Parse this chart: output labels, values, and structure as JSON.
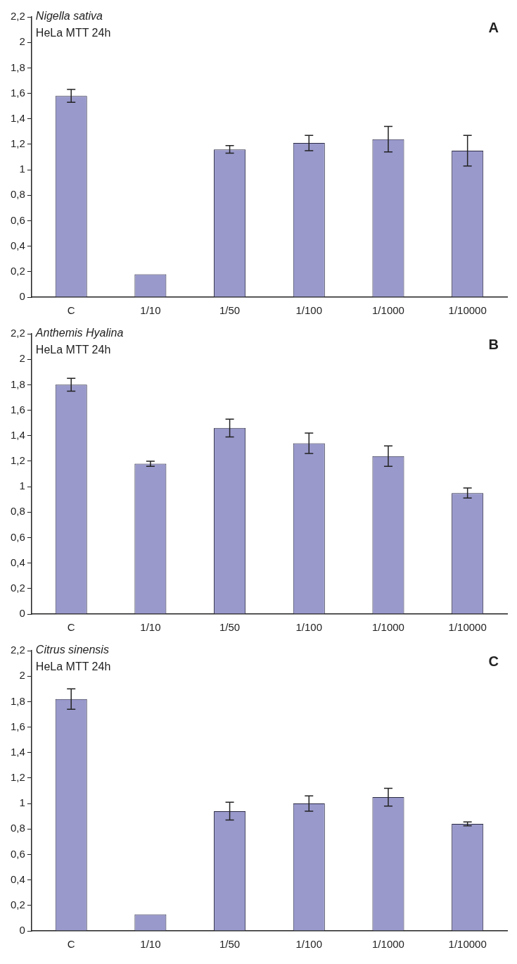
{
  "chart_data": [
    {
      "type": "bar",
      "title": "Nigella sativa",
      "subtitle": "HeLa MTT 24h",
      "annotations": [
        "A"
      ],
      "categories": [
        "C",
        "1/10",
        "1/50",
        "1/100",
        "1/1000",
        "1/10000"
      ],
      "values": [
        1.58,
        0.18,
        1.16,
        1.21,
        1.24,
        1.15
      ],
      "errors": [
        0.05,
        null,
        0.03,
        0.06,
        0.1,
        0.12
      ],
      "color": "#9999cc",
      "ylim": [
        0,
        2.2
      ],
      "yticks": [
        0,
        {
          "value": 0.2,
          "label": "0,2"
        },
        {
          "value": 0.4,
          "label": "0,4"
        },
        {
          "value": 0.6,
          "label": "0,6"
        },
        {
          "value": 0.8,
          "label": "0,8"
        },
        1,
        {
          "value": 1.2,
          "label": "1,2"
        },
        {
          "value": 1.4,
          "label": "1,4"
        },
        {
          "value": 1.6,
          "label": "1,6"
        },
        {
          "value": 1.8,
          "label": "1,8"
        },
        2,
        {
          "value": 2.2,
          "label": "2,2"
        }
      ]
    },
    {
      "type": "bar",
      "title": "Anthemis Hyalina",
      "subtitle": "HeLa MTT 24h",
      "annotations": [
        "B"
      ],
      "categories": [
        "C",
        "1/10",
        "1/50",
        "1/100",
        "1/1000",
        "1/10000"
      ],
      "values": [
        1.8,
        1.18,
        1.46,
        1.34,
        1.24,
        0.95
      ],
      "errors": [
        0.05,
        0.02,
        0.07,
        0.08,
        0.08,
        0.04
      ],
      "color": "#9999cc",
      "ylim": [
        0,
        2.2
      ],
      "yticks": [
        0,
        {
          "value": 0.2,
          "label": "0,2"
        },
        {
          "value": 0.4,
          "label": "0,4"
        },
        {
          "value": 0.6,
          "label": "0,6"
        },
        {
          "value": 0.8,
          "label": "0,8"
        },
        1,
        {
          "value": 1.2,
          "label": "1,2"
        },
        {
          "value": 1.4,
          "label": "1,4"
        },
        {
          "value": 1.6,
          "label": "1,6"
        },
        {
          "value": 1.8,
          "label": "1,8"
        },
        2,
        {
          "value": 2.2,
          "label": "2,2"
        }
      ]
    },
    {
      "type": "bar",
      "title": "Citrus sinensis",
      "subtitle": "HeLa MTT 24h",
      "annotations": [
        "C"
      ],
      "categories": [
        "C",
        "1/10",
        "1/50",
        "1/100",
        "1/1000",
        "1/10000"
      ],
      "values": [
        1.82,
        0.13,
        0.94,
        1.0,
        1.05,
        0.84
      ],
      "errors": [
        0.08,
        null,
        0.07,
        0.06,
        0.07,
        0.015
      ],
      "color": "#9999cc",
      "ylim": [
        0,
        2.2
      ],
      "yticks": [
        0,
        {
          "value": 0.2,
          "label": "0,2"
        },
        {
          "value": 0.4,
          "label": "0,4"
        },
        {
          "value": 0.6,
          "label": "0,6"
        },
        {
          "value": 0.8,
          "label": "0,8"
        },
        1,
        {
          "value": 1.2,
          "label": "1,2"
        },
        {
          "value": 1.4,
          "label": "1,4"
        },
        {
          "value": 1.6,
          "label": "1,6"
        },
        {
          "value": 1.8,
          "label": "1,8"
        },
        2,
        {
          "value": 2.2,
          "label": "2,2"
        }
      ]
    }
  ]
}
